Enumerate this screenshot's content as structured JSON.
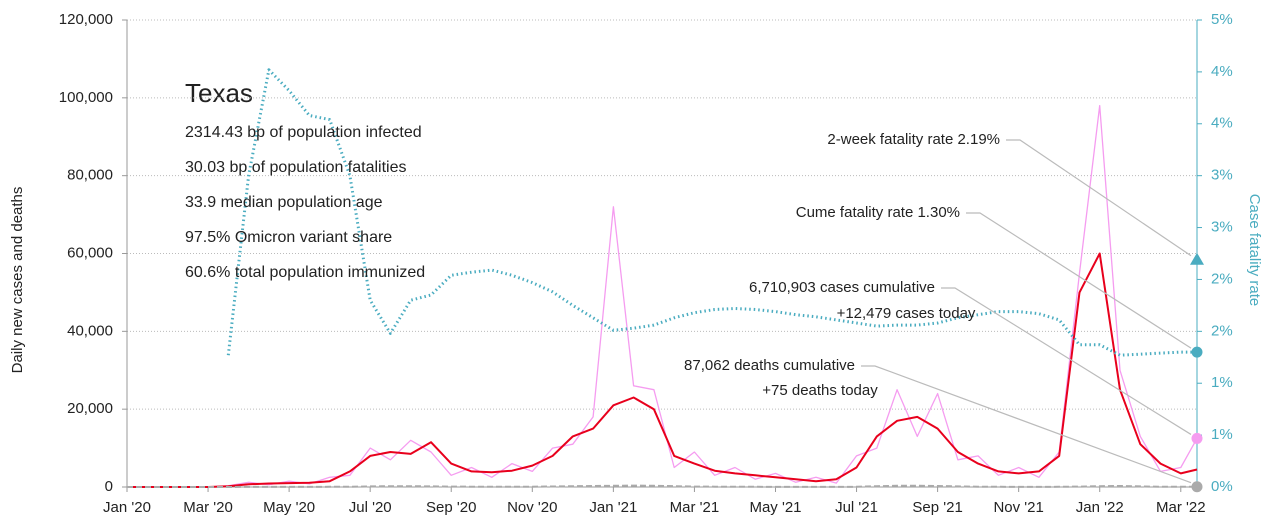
{
  "chart_data": {
    "type": "line",
    "ylabel": "Daily new cases and deaths",
    "y2label": "Case fatality rate",
    "xlim": [
      0,
      26.4
    ],
    "xticks": [
      {
        "value": 0,
        "label": "Jan '20"
      },
      {
        "value": 2,
        "label": "Mar '20"
      },
      {
        "value": 4,
        "label": "May '20"
      },
      {
        "value": 6,
        "label": "Jul '20"
      },
      {
        "value": 8,
        "label": "Sep '20"
      },
      {
        "value": 10,
        "label": "Nov '20"
      },
      {
        "value": 12,
        "label": "Jan '21"
      },
      {
        "value": 14,
        "label": "Mar '21"
      },
      {
        "value": 16,
        "label": "May '21"
      },
      {
        "value": 18,
        "label": "Jul '21"
      },
      {
        "value": 20,
        "label": "Sep '21"
      },
      {
        "value": 22,
        "label": "Nov '21"
      },
      {
        "value": 24,
        "label": "Jan '22"
      },
      {
        "value": 26,
        "label": "Mar '22"
      }
    ],
    "ylim": [
      0,
      120000
    ],
    "yticks": [
      0,
      {
        "value": 20000,
        "label": "20,000"
      },
      {
        "value": 40000,
        "label": "40,000"
      },
      {
        "value": 60000,
        "label": "60,000"
      },
      {
        "value": 80000,
        "label": "80,000"
      },
      {
        "value": 100000,
        "label": "100,000"
      },
      {
        "value": 120000,
        "label": "120,000"
      }
    ],
    "y2lim": [
      0,
      4.5
    ],
    "y2ticks": [
      {
        "value": 0,
        "label": "0%"
      },
      {
        "value": 0.5,
        "label": "1%"
      },
      {
        "value": 1,
        "label": "1%"
      },
      {
        "value": 1.5,
        "label": "2%"
      },
      {
        "value": 2,
        "label": "2%"
      },
      {
        "value": 2.5,
        "label": "3%"
      },
      {
        "value": 3,
        "label": "3%"
      },
      {
        "value": 3.5,
        "label": "4%"
      },
      {
        "value": 4,
        "label": "4%"
      },
      {
        "value": 4.5,
        "label": "5%"
      }
    ],
    "grid": true,
    "x": [
      0,
      0.5,
      1,
      1.5,
      2,
      2.5,
      3,
      3.5,
      4,
      4.5,
      5,
      5.5,
      6,
      6.5,
      7,
      7.5,
      8,
      8.5,
      9,
      9.5,
      10,
      10.5,
      11,
      11.5,
      12,
      12.5,
      13,
      13.5,
      14,
      14.5,
      15,
      15.5,
      16,
      16.5,
      17,
      17.5,
      18,
      18.5,
      19,
      19.5,
      20,
      20.5,
      21,
      21.5,
      22,
      22.5,
      23,
      23.5,
      24,
      24.5,
      25,
      25.5,
      26,
      26.4
    ],
    "series": [
      {
        "color": "#f59cf0",
        "width": 1.3,
        "values": [
          0,
          0,
          0,
          0,
          0,
          300,
          1200,
          600,
          1500,
          800,
          2500,
          3000,
          10000,
          7000,
          12000,
          9000,
          3000,
          5000,
          2500,
          6000,
          4000,
          10000,
          11000,
          18000,
          72000,
          26000,
          25000,
          5000,
          9000,
          3000,
          5000,
          2000,
          3500,
          1200,
          2500,
          1000,
          8000,
          10000,
          25000,
          13000,
          24000,
          7000,
          8000,
          3000,
          5000,
          2500,
          9000,
          55000,
          98000,
          30000,
          13000,
          4000,
          5000,
          12479
        ]
      },
      {
        "color": "#e8001c",
        "width": 2,
        "values": [
          0,
          0,
          0,
          0,
          0,
          200,
          700,
          900,
          1000,
          1100,
          1500,
          4000,
          8000,
          9000,
          8500,
          11500,
          6000,
          4000,
          3800,
          4200,
          5500,
          8000,
          13000,
          15000,
          21000,
          23000,
          20000,
          8000,
          6000,
          4200,
          3500,
          3000,
          2500,
          2000,
          1500,
          2000,
          5000,
          13000,
          17000,
          18000,
          15000,
          9000,
          6000,
          4000,
          3500,
          4000,
          8000,
          50000,
          60000,
          25000,
          11000,
          6000,
          3500,
          4500
        ]
      },
      {
        "color": "#aaaaaa",
        "width": 2,
        "dash": "6 3",
        "values": [
          0,
          0,
          0,
          0,
          0,
          5,
          20,
          30,
          30,
          30,
          40,
          60,
          150,
          200,
          200,
          150,
          100,
          80,
          60,
          60,
          80,
          120,
          200,
          250,
          300,
          350,
          300,
          200,
          100,
          80,
          50,
          40,
          30,
          20,
          15,
          20,
          60,
          200,
          300,
          330,
          250,
          150,
          80,
          50,
          30,
          30,
          40,
          100,
          200,
          250,
          150,
          60,
          40,
          75
        ]
      },
      {
        "color": "#4aacc0",
        "width": 3,
        "dash": "1.5 3",
        "axis": "y2",
        "values": [
          null,
          null,
          null,
          null,
          null,
          1.27,
          3.0,
          4.02,
          3.82,
          3.58,
          3.54,
          3.0,
          1.8,
          1.48,
          1.8,
          1.85,
          2.04,
          2.07,
          2.09,
          2.04,
          1.97,
          1.88,
          1.75,
          1.63,
          1.51,
          1.53,
          1.56,
          1.63,
          1.68,
          1.71,
          1.72,
          1.71,
          1.69,
          1.66,
          1.64,
          1.61,
          1.58,
          1.55,
          1.56,
          1.56,
          1.58,
          1.63,
          1.66,
          1.69,
          1.69,
          1.67,
          1.61,
          1.37,
          1.37,
          1.27,
          1.28,
          1.29,
          1.3,
          1.3
        ]
      }
    ],
    "annotations": [
      {
        "lines": [
          "2-week fatality rate 2.19%"
        ],
        "value": 2.19,
        "axis": "y2",
        "marker": "triangle",
        "color": "#4aacc0"
      },
      {
        "lines": [
          "Cume fatality rate 1.30%"
        ],
        "value": 1.3,
        "axis": "y2",
        "marker": "circle",
        "color": "#4aacc0"
      },
      {
        "lines": [
          "6,710,903 cases cumulative",
          "+12,479 cases today"
        ],
        "value": 12479,
        "marker": "circle",
        "color": "#f59cf0"
      },
      {
        "lines": [
          "87,062 deaths cumulative",
          "+75 deaths today"
        ],
        "value": 75,
        "marker": "circle",
        "color": "#aaaaaa"
      }
    ],
    "info": {
      "title": "Texas",
      "lines": [
        "2314.43 bp of population infected",
        "30.03 bp of population fatalities",
        "33.9 median population age",
        "97.5% Omicron variant share",
        "60.6% total population immunized"
      ]
    }
  }
}
